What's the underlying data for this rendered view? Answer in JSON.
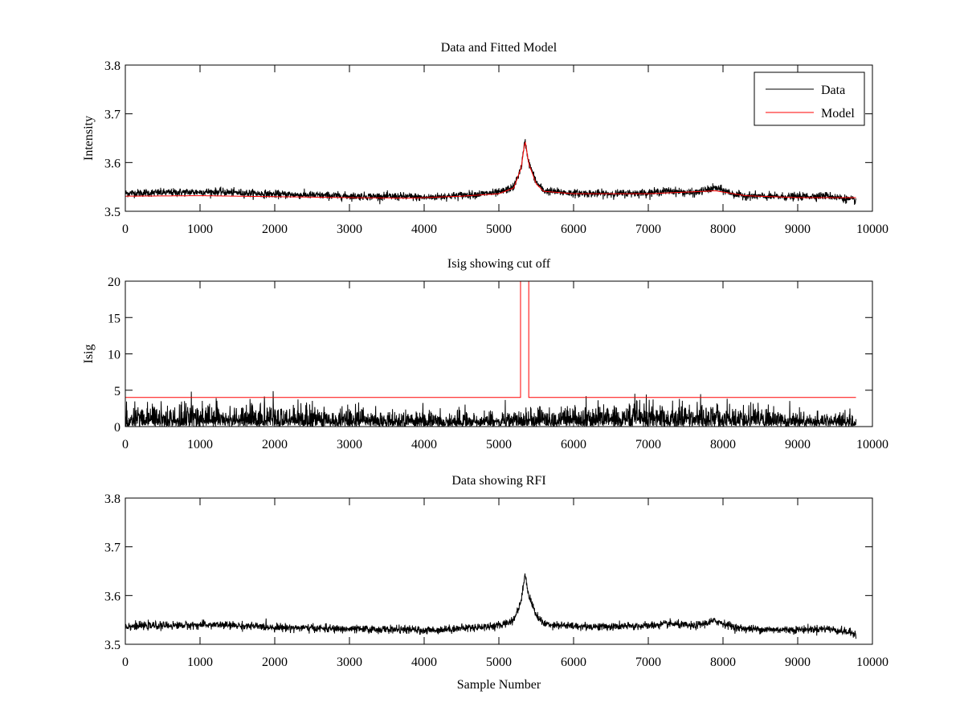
{
  "chart_data": [
    {
      "type": "line",
      "title": "Data and Fitted Model",
      "xlabel": "",
      "ylabel": "Intensity",
      "xlim": [
        0,
        10000
      ],
      "ylim": [
        3.5,
        3.8
      ],
      "xticks": [
        "0",
        "1000",
        "2000",
        "3000",
        "4000",
        "5000",
        "6000",
        "7000",
        "8000",
        "9000",
        "10000"
      ],
      "yticks": [
        "3.5",
        "3.6",
        "3.7",
        "3.8"
      ],
      "grid": false,
      "legend": "top-right",
      "series": [
        {
          "name": "Data",
          "color": "#000000",
          "style": "noisy",
          "x": [
            0,
            1200,
            2000,
            3000,
            3800,
            4000,
            4500,
            5000,
            5200,
            5300,
            5350,
            5400,
            5500,
            5600,
            6000,
            6500,
            7000,
            7300,
            7600,
            7900,
            8200,
            8600,
            9000,
            9400,
            9780
          ],
          "values": [
            3.537,
            3.54,
            3.535,
            3.531,
            3.53,
            3.528,
            3.533,
            3.538,
            3.55,
            3.59,
            3.645,
            3.6,
            3.56,
            3.542,
            3.537,
            3.536,
            3.538,
            3.542,
            3.537,
            3.548,
            3.533,
            3.53,
            3.53,
            3.532,
            3.522
          ],
          "noise": 0.004
        },
        {
          "name": "Model",
          "color": "#ff0000",
          "style": "smooth",
          "x": [
            0,
            1000,
            2000,
            3000,
            3800,
            4000,
            4500,
            5000,
            5200,
            5300,
            5350,
            5400,
            5500,
            5600,
            6000,
            7000,
            7300,
            7900,
            8300,
            9000,
            9780
          ],
          "values": [
            3.531,
            3.532,
            3.53,
            3.528,
            3.527,
            3.528,
            3.531,
            3.536,
            3.548,
            3.59,
            3.645,
            3.598,
            3.556,
            3.541,
            3.536,
            3.536,
            3.538,
            3.542,
            3.532,
            3.528,
            3.528
          ]
        }
      ]
    },
    {
      "type": "line",
      "title": "Isig showing cut off",
      "xlabel": "",
      "ylabel": "Isig",
      "xlim": [
        0,
        10000
      ],
      "ylim": [
        0,
        20
      ],
      "xticks": [
        "0",
        "1000",
        "2000",
        "3000",
        "4000",
        "5000",
        "6000",
        "7000",
        "8000",
        "9000",
        "10000"
      ],
      "yticks": [
        "0",
        "5",
        "10",
        "15",
        "20"
      ],
      "grid": false,
      "series": [
        {
          "color": "#000000",
          "style": "abs-noise",
          "x": [
            0,
            9780
          ],
          "values": [
            0,
            0
          ],
          "noise": 1.2
        },
        {
          "color": "#ff0000",
          "style": "step",
          "x": [
            0,
            5290,
            5290,
            5400,
            5400,
            9780
          ],
          "values": [
            4,
            4,
            20,
            20,
            4,
            4
          ]
        }
      ]
    },
    {
      "type": "line",
      "title": "Data showing RFI",
      "xlabel": "Sample Number",
      "ylabel": "",
      "xlim": [
        0,
        10000
      ],
      "ylim": [
        3.5,
        3.8
      ],
      "xticks": [
        "0",
        "1000",
        "2000",
        "3000",
        "4000",
        "5000",
        "6000",
        "7000",
        "8000",
        "9000",
        "10000"
      ],
      "yticks": [
        "3.5",
        "3.6",
        "3.7",
        "3.8"
      ],
      "grid": false,
      "series": [
        {
          "color": "#000000",
          "style": "noisy",
          "x": [
            0,
            1200,
            2000,
            3000,
            3800,
            4000,
            4500,
            5000,
            5200,
            5300,
            5350,
            5400,
            5500,
            5600,
            6000,
            6500,
            7000,
            7300,
            7600,
            7900,
            8200,
            8600,
            9000,
            9400,
            9780
          ],
          "values": [
            3.537,
            3.54,
            3.535,
            3.531,
            3.53,
            3.528,
            3.533,
            3.538,
            3.55,
            3.59,
            3.645,
            3.6,
            3.56,
            3.542,
            3.537,
            3.536,
            3.538,
            3.542,
            3.537,
            3.548,
            3.533,
            3.53,
            3.53,
            3.532,
            3.522
          ],
          "noise": 0.004
        }
      ]
    }
  ]
}
